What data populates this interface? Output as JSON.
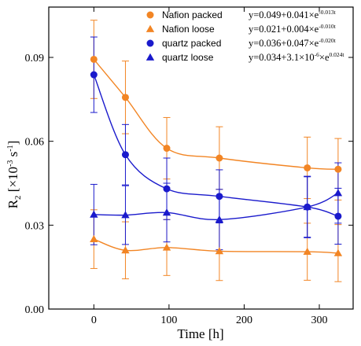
{
  "chart_data": {
    "type": "scatter",
    "xlabel": "Time [h]",
    "ylabel": {
      "base": "R",
      "sub": "2",
      "unit_open": " [×10",
      "exp1": "-3",
      "mid": " s",
      "exp2": "-1",
      "unit_close": "]"
    },
    "xlim": [
      -60,
      345
    ],
    "ylim": [
      0.0,
      0.108
    ],
    "x_ticks": [
      {
        "value": 0,
        "label": "0"
      },
      {
        "value": 100,
        "label": "100"
      },
      {
        "value": 200,
        "label": "200"
      },
      {
        "value": 300,
        "label": "300"
      }
    ],
    "y_ticks": [
      {
        "value": 0.0,
        "label": "0.00"
      },
      {
        "value": 0.03,
        "label": "0.03"
      },
      {
        "value": 0.06,
        "label": "0.06"
      },
      {
        "value": 0.09,
        "label": "0.09"
      }
    ],
    "grid": false,
    "legend_position": "top-right",
    "series": [
      {
        "name": "Nafion packed",
        "color": "#f28524",
        "marker": "circle",
        "equation": {
          "pre": "y=0.049+0.041×e",
          "exp": "-0.013t"
        },
        "points": [
          {
            "x": 0,
            "y": 0.0893,
            "err": 0.014
          },
          {
            "x": 42,
            "y": 0.0757,
            "err": 0.013
          },
          {
            "x": 97,
            "y": 0.0575,
            "err": 0.011
          },
          {
            "x": 167,
            "y": 0.054,
            "err": 0.0112
          },
          {
            "x": 284,
            "y": 0.0505,
            "err": 0.011
          },
          {
            "x": 325,
            "y": 0.05,
            "err": 0.011
          }
        ]
      },
      {
        "name": "Nafion loose",
        "color": "#f28524",
        "marker": "triangle",
        "equation": {
          "pre": "y=0.021+0.004×e",
          "exp": "-0.010t"
        },
        "points": [
          {
            "x": 0,
            "y": 0.025,
            "err": 0.0105
          },
          {
            "x": 42,
            "y": 0.021,
            "err": 0.0102
          },
          {
            "x": 97,
            "y": 0.022,
            "err": 0.01
          },
          {
            "x": 167,
            "y": 0.0207,
            "err": 0.0105
          },
          {
            "x": 284,
            "y": 0.0205,
            "err": 0.0102
          },
          {
            "x": 325,
            "y": 0.02,
            "err": 0.0102
          }
        ]
      },
      {
        "name": "quartz packed",
        "color": "#1a1acc",
        "marker": "circle",
        "equation": {
          "pre": "y=0.036+0.047×e",
          "exp": "-0.020t"
        },
        "points": [
          {
            "x": 0,
            "y": 0.0838,
            "err": 0.0135
          },
          {
            "x": 42,
            "y": 0.0552,
            "err": 0.0108
          },
          {
            "x": 97,
            "y": 0.043,
            "err": 0.011
          },
          {
            "x": 167,
            "y": 0.0403,
            "err": 0.0095
          },
          {
            "x": 284,
            "y": 0.0365,
            "err": 0.011
          },
          {
            "x": 325,
            "y": 0.0332,
            "err": 0.01
          }
        ]
      },
      {
        "name": "quartz loose",
        "color": "#1a1acc",
        "marker": "triangle",
        "equation": {
          "pre": "y=0.034+3.1×10",
          "exp1": "-6",
          "mid": "×e",
          "exp": "0.024t"
        },
        "points": [
          {
            "x": 0,
            "y": 0.0338,
            "err": 0.0108
          },
          {
            "x": 42,
            "y": 0.0336,
            "err": 0.0105
          },
          {
            "x": 97,
            "y": 0.0345,
            "err": 0.0105
          },
          {
            "x": 167,
            "y": 0.032,
            "err": 0.0108
          },
          {
            "x": 284,
            "y": 0.0365,
            "err": 0.0108
          },
          {
            "x": 325,
            "y": 0.0415,
            "err": 0.0108
          }
        ]
      }
    ]
  }
}
